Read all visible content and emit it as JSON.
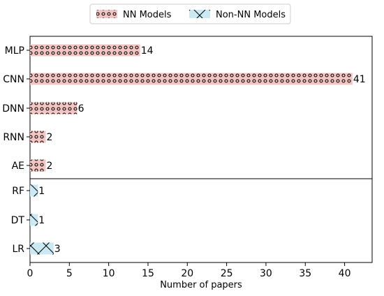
{
  "chart_data": {
    "type": "bar",
    "orientation": "horizontal",
    "title": "",
    "xlabel": "Number of papers",
    "ylabel": "",
    "xlim": [
      0,
      43.5
    ],
    "xticks": [
      0,
      5,
      10,
      15,
      20,
      25,
      30,
      35,
      40
    ],
    "grid": false,
    "legend_position": "top-center",
    "series": [
      {
        "name": "NN Models",
        "color": "#f4c6c3",
        "hatch": "circles",
        "categories": [
          "MLP",
          "CNN",
          "DNN",
          "RNN",
          "AE"
        ],
        "values": [
          14,
          41,
          6,
          2,
          2
        ]
      },
      {
        "name": "Non-NN Models",
        "color": "#cbe9f2",
        "hatch": "crosses",
        "categories": [
          "RF",
          "DT",
          "LR"
        ],
        "values": [
          1,
          1,
          3
        ]
      }
    ],
    "value_labels": [
      "14",
      "41",
      "6",
      "2",
      "2",
      "1",
      "1",
      "3"
    ]
  }
}
